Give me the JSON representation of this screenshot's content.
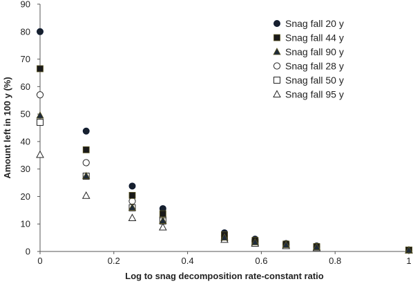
{
  "chart_data": {
    "type": "scatter",
    "title": "",
    "xlabel": "Log to snag decomposition rate-constant ratio",
    "ylabel": "Amount left in 100 y (%)",
    "xlim": [
      0,
      1
    ],
    "ylim": [
      0,
      90
    ],
    "xticks": [
      0,
      0.2,
      0.4,
      0.6,
      0.8,
      1
    ],
    "xtick_labels": [
      "0",
      "0.2",
      "0.4",
      "0.6",
      "0.8",
      "1"
    ],
    "yticks": [
      0,
      10,
      20,
      30,
      40,
      50,
      60,
      70,
      80,
      90
    ],
    "ytick_labels": [
      "0",
      "10",
      "20",
      "30",
      "40",
      "50",
      "60",
      "70",
      "80",
      "90"
    ],
    "grid": false,
    "legend_position": "top-right",
    "series": [
      {
        "name": "Snag fall 20 y",
        "marker": "circle-filled",
        "color": "#17202e",
        "x": [
          0,
          0.125,
          0.25,
          0.333,
          0.5,
          0.583,
          0.667,
          0.75,
          1
        ],
        "y": [
          80,
          43.8,
          23.8,
          15.6,
          6.8,
          4.5,
          2.9,
          2.0,
          0.5
        ]
      },
      {
        "name": "Snag fall 44 y",
        "marker": "square-filled",
        "color": "#1a1a1a",
        "x": [
          0,
          0.125,
          0.25,
          0.333,
          0.5,
          0.583,
          0.667,
          0.75,
          1
        ],
        "y": [
          66.5,
          37,
          20.4,
          13.7,
          6.0,
          4.0,
          2.7,
          1.8,
          0.5
        ]
      },
      {
        "name": "Snag fall 90 y",
        "marker": "triangle-filled",
        "color": "#1f2b3a",
        "x": [
          0,
          0.125,
          0.25,
          0.333,
          0.5,
          0.583,
          0.667,
          0.75,
          1
        ],
        "y": [
          49.5,
          27.5,
          16,
          11.2,
          5.1,
          3.4,
          2.4,
          1.6,
          0.5
        ]
      },
      {
        "name": "Snag fall 28 y",
        "marker": "circle-open",
        "color": "#1a1a1a",
        "x": [
          0,
          0.125,
          0.25,
          0.333,
          0.5,
          0.583,
          0.667,
          0.75,
          1
        ],
        "y": [
          57,
          32.3,
          18.3,
          12.4,
          5.6,
          3.7,
          2.5,
          1.7,
          0.5
        ]
      },
      {
        "name": "Snag fall 50 y",
        "marker": "square-open",
        "color": "#1a1a1a",
        "x": [
          0,
          0.125,
          0.25,
          0.333,
          0.5,
          0.583,
          0.667,
          0.75,
          1
        ],
        "y": [
          47,
          27.4,
          15.9,
          11.1,
          5.0,
          3.3,
          2.3,
          1.5,
          0.5
        ]
      },
      {
        "name": "Snag fall 95 y",
        "marker": "triangle-open",
        "color": "#1a1a1a",
        "x": [
          0,
          0.125,
          0.25,
          0.333,
          0.5,
          0.583,
          0.667,
          0.75,
          1
        ],
        "y": [
          35.2,
          20.3,
          12.2,
          8.8,
          4.3,
          2.9,
          2.0,
          1.3,
          0.4
        ]
      }
    ]
  }
}
